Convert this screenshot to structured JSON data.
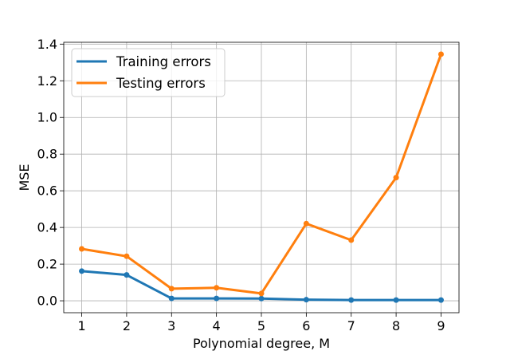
{
  "chart_data": {
    "type": "line",
    "title": "",
    "xlabel": "Polynomial degree, M",
    "ylabel": "MSE",
    "x": [
      1,
      2,
      3,
      4,
      5,
      6,
      7,
      8,
      9
    ],
    "x_tick_labels": [
      "1",
      "2",
      "3",
      "4",
      "5",
      "6",
      "7",
      "8",
      "9"
    ],
    "y_tick_values": [
      0.0,
      0.2,
      0.4,
      0.6,
      0.8,
      1.0,
      1.2,
      1.4
    ],
    "y_tick_labels": [
      "0.0",
      "0.2",
      "0.4",
      "0.6",
      "0.8",
      "1.0",
      "1.2",
      "1.4"
    ],
    "xlim": [
      0.6,
      9.4
    ],
    "ylim": [
      -0.065,
      1.41
    ],
    "grid": true,
    "legend_position": "top-left",
    "series": [
      {
        "name": "Training errors",
        "color": "#1f77b4",
        "values": [
          0.162,
          0.141,
          0.013,
          0.013,
          0.012,
          0.006,
          0.004,
          0.004,
          0.004
        ]
      },
      {
        "name": "Testing errors",
        "color": "#ff7f0e",
        "values": [
          0.283,
          0.243,
          0.066,
          0.071,
          0.04,
          0.421,
          0.331,
          0.672,
          1.345
        ]
      }
    ]
  }
}
